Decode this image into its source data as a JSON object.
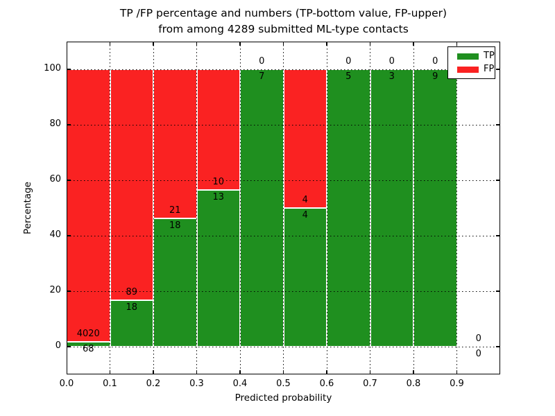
{
  "chart_data": {
    "type": "bar",
    "subtype": "stacked-percentage-histogram",
    "title": "TP /FP percentage and numbers (TP-bottom value, FP-upper)\nfrom among 4289 submitted ML-type contacts",
    "xlabel": "Predicted probability",
    "ylabel": "Percentage",
    "total_contacts": 4289,
    "xlim": [
      0.0,
      1.0
    ],
    "ylim": [
      -10,
      110
    ],
    "grid": true,
    "grid_style": "dotted",
    "bin_width": 0.1,
    "x_ticks": [
      "0.0",
      "0.1",
      "0.2",
      "0.3",
      "0.4",
      "0.5",
      "0.6",
      "0.7",
      "0.8",
      "0.9"
    ],
    "y_ticks": [
      0,
      20,
      40,
      60,
      80,
      100
    ],
    "bin_starts": [
      0.0,
      0.1,
      0.2,
      0.3,
      0.4,
      0.5,
      0.6,
      0.7,
      0.8,
      0.9
    ],
    "series": [
      {
        "name": "TP",
        "color": "#1f8f1f",
        "position": "bottom",
        "values": [
          68,
          18,
          18,
          13,
          7,
          4,
          5,
          3,
          9,
          0
        ]
      },
      {
        "name": "FP",
        "color": "#fa2222",
        "position": "upper",
        "values": [
          4020,
          89,
          21,
          10,
          0,
          4,
          0,
          0,
          0,
          0
        ]
      }
    ],
    "tp_percent_by_bin": [
      1.66,
      16.82,
      46.15,
      56.52,
      100,
      50,
      100,
      100,
      100,
      null
    ],
    "legend": {
      "position": "upper right",
      "entries": [
        "TP",
        "FP"
      ]
    }
  }
}
